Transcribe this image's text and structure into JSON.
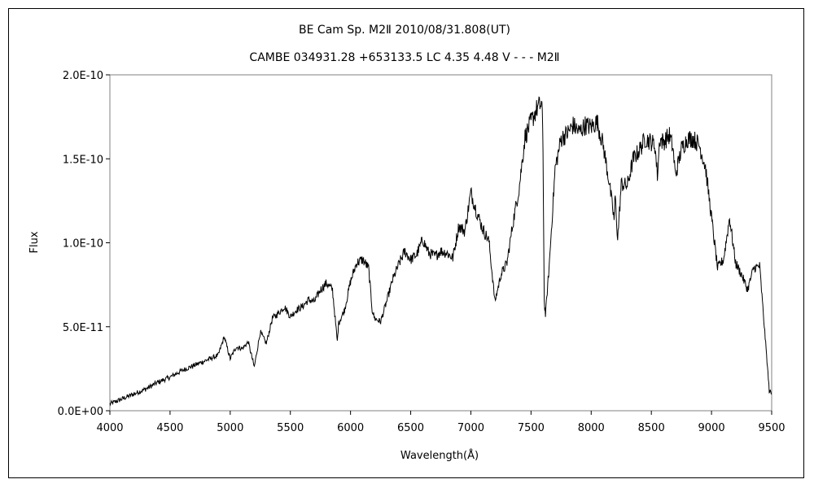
{
  "chart_data": {
    "type": "line",
    "title": "BE Cam    Sp. M2Ⅱ    2010/08/31.808(UT)",
    "subtitle": "CAMBE 034931.28 +653133.5 LC 4.35 4.48 V - - - M2Ⅱ",
    "xlabel": "Wavelength(Å)",
    "ylabel": "Flux",
    "xlim": [
      4000,
      9500
    ],
    "ylim": [
      0,
      2e-10
    ],
    "x_ticks": [
      4000,
      4500,
      5000,
      5500,
      6000,
      6500,
      7000,
      7500,
      8000,
      8500,
      9000,
      9500
    ],
    "x_tick_labels": [
      "4000",
      "4500",
      "5000",
      "5500",
      "6000",
      "6500",
      "7000",
      "7500",
      "8000",
      "8500",
      "9000",
      "9500"
    ],
    "y_ticks": [
      0,
      5e-11,
      1e-10,
      1.5e-10,
      2e-10
    ],
    "y_tick_labels": [
      "0.0E+00",
      "5.0E-11",
      "1.0E-10",
      "1.5E-10",
      "2.0E-10"
    ],
    "grid": false,
    "legend": "none",
    "line_color": "#000000",
    "series": [
      {
        "x": [
          4000,
          4100,
          4200,
          4300,
          4400,
          4500,
          4600,
          4700,
          4800,
          4900,
          4950,
          5000,
          5050,
          5100,
          5150,
          5200,
          5250,
          5300,
          5350,
          5400,
          5450,
          5500,
          5550,
          5600,
          5650,
          5700,
          5750,
          5800,
          5850,
          5880,
          5890,
          5900,
          5950,
          6000,
          6050,
          6100,
          6150,
          6180,
          6200,
          6250,
          6300,
          6350,
          6400,
          6450,
          6500,
          6550,
          6600,
          6650,
          6700,
          6750,
          6800,
          6850,
          6900,
          6950,
          7000,
          7050,
          7100,
          7150,
          7200,
          7250,
          7300,
          7350,
          7400,
          7450,
          7500,
          7550,
          7590,
          7600,
          7610,
          7620,
          7650,
          7700,
          7750,
          7800,
          7850,
          7900,
          7950,
          8000,
          8050,
          8100,
          8150,
          8190,
          8200,
          8220,
          8250,
          8300,
          8350,
          8400,
          8450,
          8500,
          8530,
          8550,
          8570,
          8600,
          8650,
          8680,
          8700,
          8750,
          8800,
          8850,
          8900,
          8950,
          9000,
          9050,
          9100,
          9150,
          9200,
          9250,
          9300,
          9350,
          9400,
          9450,
          9480,
          9500
        ],
        "y": [
          4e-12,
          7e-12,
          1e-11,
          1.3e-11,
          1.7e-11,
          2e-11,
          2.4e-11,
          2.7e-11,
          3e-11,
          3.3e-11,
          4.4e-11,
          3.1e-11,
          3.8e-11,
          3.7e-11,
          4.1e-11,
          2.6e-11,
          4.7e-11,
          4e-11,
          5.5e-11,
          5.8e-11,
          6.2e-11,
          5.6e-11,
          6e-11,
          6.2e-11,
          6.6e-11,
          6.5e-11,
          7.2e-11,
          7.6e-11,
          7.2e-11,
          4.9e-11,
          4.1e-11,
          5.2e-11,
          6e-11,
          7.7e-11,
          8.8e-11,
          9e-11,
          8.5e-11,
          6e-11,
          5.5e-11,
          5.3e-11,
          6.5e-11,
          7.8e-11,
          8.7e-11,
          9.5e-11,
          9e-11,
          9.3e-11,
          1.02e-10,
          9.4e-11,
          9.2e-11,
          9.5e-11,
          9.4e-11,
          9.1e-11,
          1.1e-10,
          1.07e-10,
          1.3e-10,
          1.18e-10,
          1.08e-10,
          1.01e-10,
          6.5e-11,
          8.1e-11,
          8.8e-11,
          1.12e-10,
          1.32e-10,
          1.63e-10,
          1.72e-10,
          1.8e-10,
          1.83e-10,
          1.55e-10,
          6.5e-11,
          5.7e-11,
          8.5e-11,
          1.44e-10,
          1.62e-10,
          1.65e-10,
          1.7e-10,
          1.66e-10,
          1.7e-10,
          1.69e-10,
          1.72e-10,
          1.58e-10,
          1.36e-10,
          1.14e-10,
          1.28e-10,
          1.02e-10,
          1.35e-10,
          1.34e-10,
          1.5e-10,
          1.55e-10,
          1.62e-10,
          1.6e-10,
          1.58e-10,
          1.4e-10,
          1.62e-10,
          1.6e-10,
          1.64e-10,
          1.56e-10,
          1.4e-10,
          1.56e-10,
          1.62e-10,
          1.62e-10,
          1.58e-10,
          1.45e-10,
          1.15e-10,
          8.5e-11,
          9e-11,
          1.15e-10,
          8.8e-11,
          8.1e-11,
          7.2e-11,
          8.5e-11,
          8.6e-11,
          4e-11,
          1.2e-11,
          1e-11
        ]
      }
    ]
  }
}
